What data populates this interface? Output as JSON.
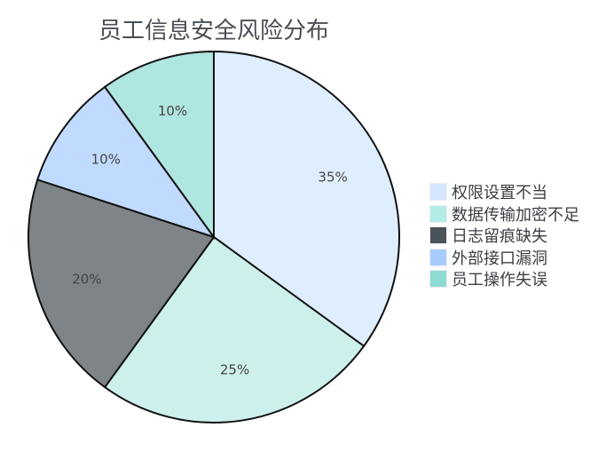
{
  "chart_data": {
    "type": "pie",
    "title": "员工信息安全风险分布",
    "categories": [
      "权限设置不当",
      "数据传输加密不足",
      "日志留痕缺失",
      "外部接口漏洞",
      "员工操作失误"
    ],
    "values": [
      35,
      25,
      20,
      10,
      10
    ],
    "labels": [
      "35%",
      "25%",
      "20%",
      "10%",
      "10%"
    ],
    "slice_colors": [
      "#dfeeff",
      "#cdf0ec",
      "#7f8489",
      "#c0dbff",
      "#b0e6e0"
    ],
    "legend_colors": [
      "#d6e8ff",
      "#b3ebe5",
      "#4a525a",
      "#a8ccff",
      "#8ddbd3"
    ],
    "legend_position": "right",
    "start": "top",
    "direction": "clockwise"
  }
}
